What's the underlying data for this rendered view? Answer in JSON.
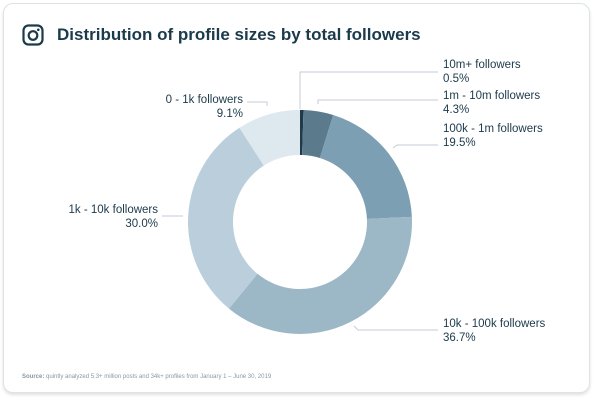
{
  "header": {
    "title": "Distribution of profile sizes by total followers",
    "icon": "instagram-icon"
  },
  "chart_data": {
    "type": "pie",
    "donut": true,
    "categories": [
      "10m+ followers",
      "1m - 10m followers",
      "100k - 1m followers",
      "10k - 100k followers",
      "1k - 10k followers",
      "0 - 1k followers"
    ],
    "values": [
      0.5,
      4.3,
      19.5,
      36.7,
      30.0,
      9.1
    ],
    "value_labels": [
      "0.5%",
      "4.3%",
      "19.5%",
      "36.7%",
      "30.0%",
      "9.1%"
    ],
    "colors": [
      "#1f3a4a",
      "#5b7b8d",
      "#7d9fb3",
      "#9cb7c6",
      "#bacfdb",
      "#dde8ef"
    ]
  },
  "footer": {
    "source_label": "Source:",
    "source_text": "quintly analyzed 5.3+ million posts and 34k+ profiles from January 1 – June 30, 2019"
  }
}
